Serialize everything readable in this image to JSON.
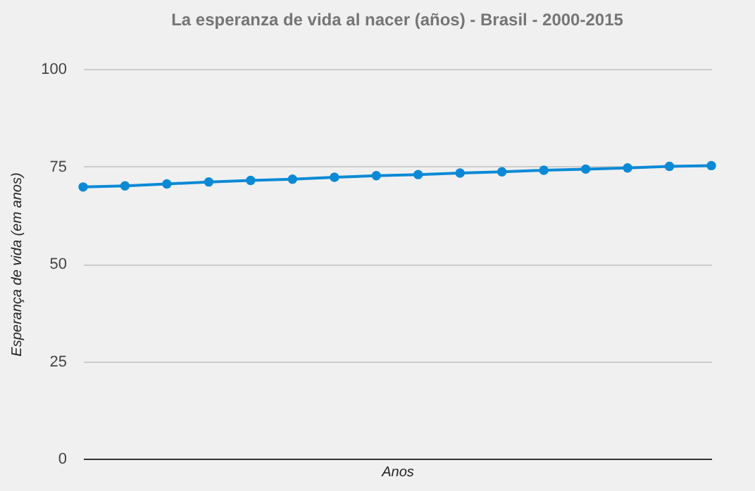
{
  "chart_data": {
    "type": "line",
    "title": "La esperanza de vida al nacer (años) - Brasil - 2000-2015",
    "xlabel": "Anos",
    "ylabel": "Esperança de vida (em anos)",
    "categories": [
      null,
      null,
      null,
      null,
      null,
      null,
      null,
      null,
      null,
      null,
      null,
      null,
      null,
      null,
      null,
      null
    ],
    "series": [
      {
        "color": "#0a8ad6",
        "values": [
          69.7,
          70.0,
          70.5,
          71.0,
          71.4,
          71.7,
          72.2,
          72.6,
          72.9,
          73.3,
          73.6,
          74.0,
          74.3,
          74.6,
          75.0,
          75.2
        ]
      }
    ],
    "ylim": [
      0,
      100
    ],
    "yticks": [
      0,
      25,
      50,
      75,
      100
    ],
    "grid": "y",
    "marker": "circle",
    "line_style": "solid",
    "tick_labels": "y",
    "legend": false
  }
}
